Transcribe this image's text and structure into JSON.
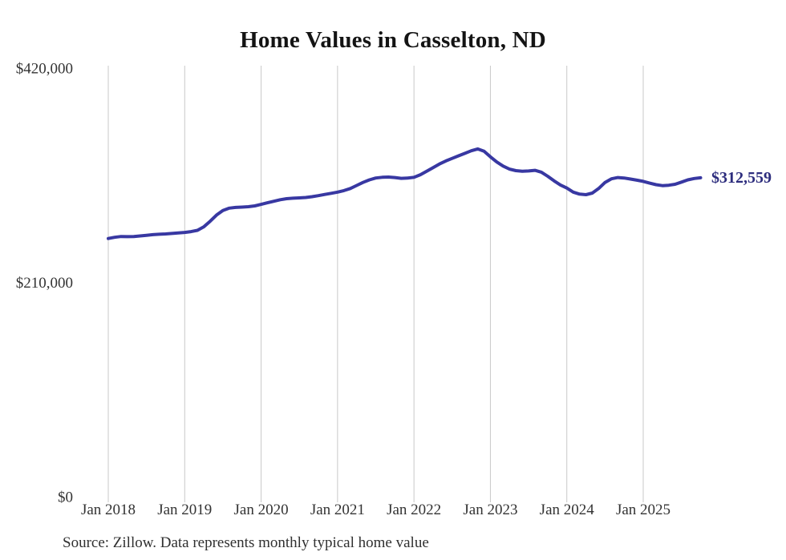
{
  "page": {
    "title": "Home Values in Casselton, ND",
    "source_note": "Source: Zillow. Data represents monthly typical home value"
  },
  "chart_data": {
    "type": "line",
    "title": "Home Values in Casselton, ND",
    "xlabel": "",
    "ylabel": "",
    "ylim": [
      0,
      420000
    ],
    "grid": "vertical-only",
    "legend": "none",
    "line_color": "#3838a2",
    "grid_color": "#c9c9c9",
    "end_label": "$312,559",
    "end_label_color": "#2c2c7d",
    "y_ticks": [
      {
        "value": 0,
        "label": "$0"
      },
      {
        "value": 210000,
        "label": "$210,000"
      },
      {
        "value": 420000,
        "label": "$420,000"
      }
    ],
    "x_tick_labels": [
      "Jan 2018",
      "Jan 2019",
      "Jan 2020",
      "Jan 2021",
      "Jan 2022",
      "Jan 2023",
      "Jan 2024",
      "Jan 2025"
    ],
    "x": [
      "Jan 2018",
      "Feb 2018",
      "Mar 2018",
      "Apr 2018",
      "May 2018",
      "Jun 2018",
      "Jul 2018",
      "Aug 2018",
      "Sep 2018",
      "Oct 2018",
      "Nov 2018",
      "Dec 2018",
      "Jan 2019",
      "Feb 2019",
      "Mar 2019",
      "Apr 2019",
      "May 2019",
      "Jun 2019",
      "Jul 2019",
      "Aug 2019",
      "Sep 2019",
      "Oct 2019",
      "Nov 2019",
      "Dec 2019",
      "Jan 2020",
      "Feb 2020",
      "Mar 2020",
      "Apr 2020",
      "May 2020",
      "Jun 2020",
      "Jul 2020",
      "Aug 2020",
      "Sep 2020",
      "Oct 2020",
      "Nov 2020",
      "Dec 2020",
      "Jan 2021",
      "Feb 2021",
      "Mar 2021",
      "Apr 2021",
      "May 2021",
      "Jun 2021",
      "Jul 2021",
      "Aug 2021",
      "Sep 2021",
      "Oct 2021",
      "Nov 2021",
      "Dec 2021",
      "Jan 2022",
      "Feb 2022",
      "Mar 2022",
      "Apr 2022",
      "May 2022",
      "Jun 2022",
      "Jul 2022",
      "Aug 2022",
      "Sep 2022",
      "Oct 2022",
      "Nov 2022",
      "Dec 2022",
      "Jan 2023",
      "Feb 2023",
      "Mar 2023",
      "Apr 2023",
      "May 2023",
      "Jun 2023",
      "Jul 2023",
      "Aug 2023",
      "Sep 2023",
      "Oct 2023",
      "Nov 2023",
      "Dec 2023",
      "Jan 2024",
      "Feb 2024",
      "Mar 2024",
      "Apr 2024",
      "May 2024",
      "Jun 2024",
      "Jul 2024",
      "Aug 2024",
      "Sep 2024",
      "Oct 2024",
      "Nov 2024",
      "Dec 2024",
      "Jan 2025",
      "Feb 2025",
      "Mar 2025",
      "Apr 2025",
      "May 2025",
      "Jun 2025",
      "Jul 2025",
      "Aug 2025",
      "Sep 2025",
      "Oct 2025"
    ],
    "values": [
      253000,
      254200,
      255000,
      254800,
      255000,
      255500,
      256200,
      256800,
      257200,
      257500,
      258000,
      258500,
      259000,
      259800,
      261000,
      264500,
      270000,
      276000,
      280500,
      282800,
      283500,
      283800,
      284200,
      285000,
      286500,
      288000,
      289500,
      291000,
      292000,
      292500,
      292800,
      293200,
      294000,
      295000,
      296200,
      297300,
      298500,
      300000,
      302000,
      305000,
      308000,
      310500,
      312300,
      313000,
      313200,
      312800,
      312000,
      312200,
      313000,
      315500,
      319000,
      322500,
      326000,
      329000,
      331500,
      334000,
      336500,
      339000,
      340800,
      338500,
      333000,
      328000,
      324000,
      321000,
      319500,
      319000,
      319200,
      319800,
      318000,
      314000,
      309500,
      305500,
      302500,
      298500,
      296500,
      296000,
      297500,
      302000,
      308000,
      311500,
      312800,
      312300,
      311300,
      310200,
      309000,
      307300,
      305800,
      304800,
      305200,
      306200,
      308300,
      310500,
      311800,
      312559
    ]
  }
}
